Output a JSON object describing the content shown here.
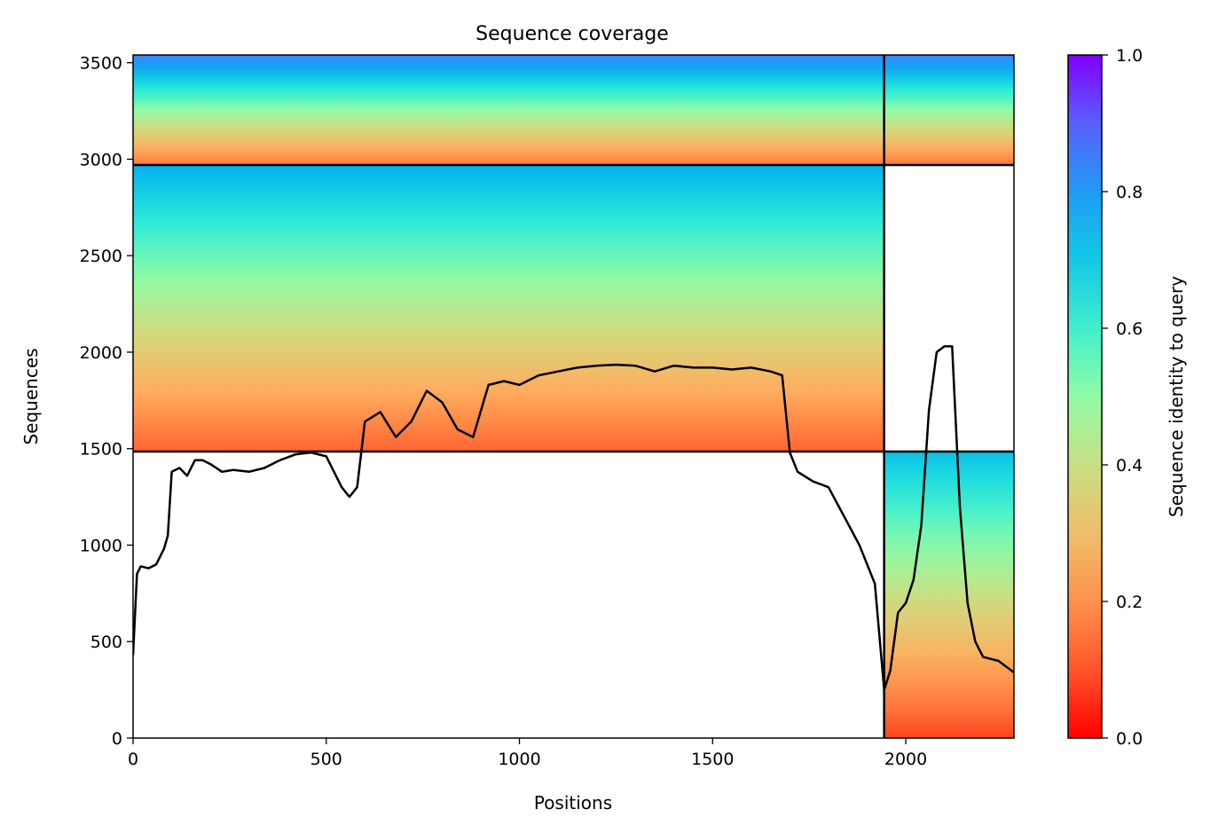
{
  "chart_data": {
    "type": "heatmap",
    "title": "Sequence coverage",
    "xlabel": "Positions",
    "ylabel": "Sequences",
    "xlim": [
      0,
      2280
    ],
    "ylim": [
      0,
      3540
    ],
    "x_ticks": [
      0,
      500,
      1000,
      1500,
      2000
    ],
    "y_ticks": [
      0,
      500,
      1000,
      1500,
      2000,
      2500,
      3000,
      3500
    ],
    "grid": false,
    "chain_boundaries": {
      "x": [
        1944
      ],
      "y": [
        1485,
        2970
      ]
    },
    "colorbar": {
      "label": "Sequence identity to query",
      "range": [
        0,
        1
      ],
      "ticks": [
        0.0,
        0.2,
        0.4,
        0.6,
        0.8,
        1.0
      ],
      "tick_labels": [
        "0.0",
        "0.2",
        "0.4",
        "0.6",
        "0.8",
        "1.0"
      ],
      "colormap": "rainbow_r",
      "stops": [
        "#ff0000",
        "#ff6a34",
        "#ffac5e",
        "#d6d87c",
        "#90fca6",
        "#2cecd7",
        "#00b2f0",
        "#4e78fc",
        "#8000ff"
      ]
    },
    "coverage_blocks": [
      {
        "x": [
          0,
          1944
        ],
        "y": [
          2970,
          3540
        ],
        "identity_bottom": 0.15,
        "identity_top": 0.85
      },
      {
        "x": [
          1944,
          2280
        ],
        "y": [
          2970,
          3540
        ],
        "identity_bottom": 0.15,
        "identity_top": 0.85
      },
      {
        "x": [
          0,
          1944
        ],
        "y": [
          1485,
          2970
        ],
        "identity_bottom": 0.12,
        "identity_top": 0.75
      },
      {
        "x": [
          1944,
          2280
        ],
        "y": [
          0,
          1485
        ],
        "identity_bottom": 0.08,
        "identity_top": 0.72
      }
    ],
    "series": [
      {
        "type": "line",
        "x": [
          0,
          10,
          20,
          40,
          60,
          80,
          90,
          100,
          120,
          140,
          160,
          180,
          200,
          230,
          260,
          300,
          340,
          380,
          420,
          460,
          500,
          540,
          560,
          580,
          600,
          640,
          680,
          720,
          760,
          800,
          840,
          880,
          920,
          960,
          1000,
          1050,
          1100,
          1150,
          1200,
          1250,
          1300,
          1350,
          1400,
          1450,
          1500,
          1550,
          1600,
          1650,
          1680,
          1700,
          1720,
          1760,
          1800,
          1840,
          1880,
          1920,
          1944,
          1960,
          1980,
          2000,
          2020,
          2040,
          2060,
          2080,
          2100,
          2120,
          2140,
          2160,
          2180,
          2200,
          2240,
          2280
        ],
        "y": [
          430,
          850,
          890,
          880,
          900,
          980,
          1050,
          1380,
          1400,
          1360,
          1440,
          1440,
          1420,
          1380,
          1390,
          1380,
          1400,
          1440,
          1470,
          1480,
          1460,
          1300,
          1250,
          1300,
          1640,
          1690,
          1560,
          1640,
          1800,
          1740,
          1600,
          1560,
          1830,
          1850,
          1830,
          1880,
          1900,
          1920,
          1930,
          1935,
          1930,
          1900,
          1930,
          1920,
          1920,
          1910,
          1920,
          1900,
          1880,
          1480,
          1380,
          1330,
          1300,
          1150,
          1000,
          800,
          250,
          350,
          650,
          700,
          820,
          1100,
          1700,
          2000,
          2030,
          2030,
          1200,
          700,
          500,
          420,
          400,
          340
        ]
      }
    ]
  }
}
